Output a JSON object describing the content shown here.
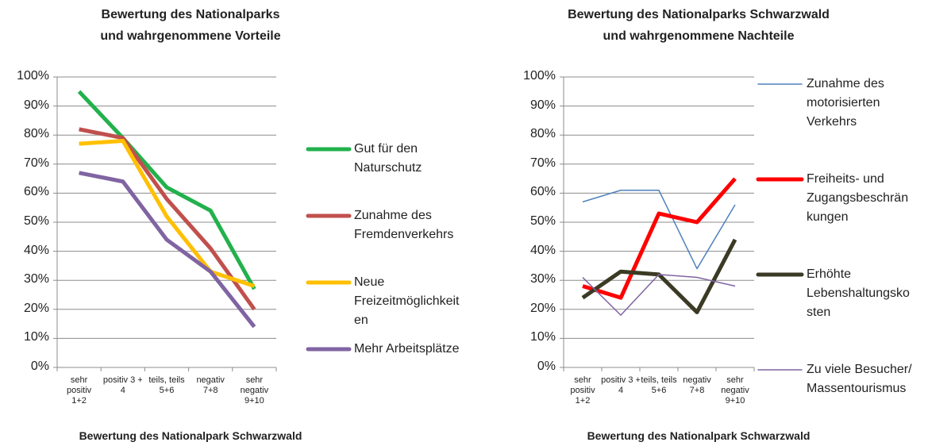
{
  "chart_data": [
    {
      "type": "line",
      "title": [
        "Bewertung des Nationalparks",
        "und wahrgenommene Vorteile"
      ],
      "x_label": "Bewertung des Nationalpark Schwarzwald",
      "categories": [
        "sehr positiv 1+2",
        "positiv 3 + 4",
        "teils, teils 5+6",
        "negativ 7+8",
        "sehr negativ 9+10"
      ],
      "series": [
        {
          "name": "Gut für den Naturschutz",
          "color": "#22b14c",
          "width": 5,
          "values": [
            95,
            79,
            62,
            54,
            27
          ]
        },
        {
          "name": "Zunahme des Fremdenverkehrs",
          "color": "#c0504d",
          "width": 5,
          "values": [
            82,
            79,
            58,
            41,
            20
          ]
        },
        {
          "name": "Neue Freizeitmöglichkeiten",
          "color": "#ffc000",
          "width": 5,
          "values": [
            77,
            78,
            52,
            33,
            28
          ]
        },
        {
          "name": "Mehr Arbeitsplätze",
          "color": "#8064a2",
          "width": 5,
          "values": [
            67,
            64,
            44,
            33,
            14
          ]
        }
      ],
      "ylim": [
        0,
        100
      ],
      "yticks": [
        {
          "value": 0,
          "label": "0%"
        },
        {
          "value": 10,
          "label": "10%"
        },
        {
          "value": 20,
          "label": "20%"
        },
        {
          "value": 30,
          "label": "30%"
        },
        {
          "value": 40,
          "label": "40%"
        },
        {
          "value": 50,
          "label": "50%"
        },
        {
          "value": 60,
          "label": "60%"
        },
        {
          "value": 70,
          "label": "70%"
        },
        {
          "value": 80,
          "label": "80%"
        },
        {
          "value": 90,
          "label": "90%"
        },
        {
          "value": 100,
          "label": "100%"
        }
      ],
      "grid": true,
      "legend": "right"
    },
    {
      "type": "line",
      "title": [
        "Bewertung des Nationalparks Schwarzwald",
        "und wahrgenommene Nachteile"
      ],
      "x_label": "Bewertung des Nationalpark Schwarzwald",
      "categories": [
        "sehr positiv 1+2",
        "positiv 3 + 4",
        "teils, teils 5+6",
        "negativ 7+8",
        "sehr negativ 9+10"
      ],
      "series": [
        {
          "name": "Zunahme des motorisierten Verkehrs",
          "color": "#4f81bd",
          "width": 1.5,
          "values": [
            57,
            61,
            61,
            34,
            56
          ]
        },
        {
          "name": "Freiheits- und Zugangsbeschränkungen",
          "color": "#ff0000",
          "width": 5,
          "values": [
            28,
            24,
            53,
            50,
            65
          ]
        },
        {
          "name": "Erhöhte Lebenshaltungskosten",
          "color": "#3b3a24",
          "width": 5,
          "values": [
            24,
            33,
            32,
            19,
            44
          ]
        },
        {
          "name": "Zu viele Besucher/ Massentourismus",
          "color": "#8064a2",
          "width": 1.5,
          "values": [
            31,
            18,
            32,
            31,
            28
          ]
        }
      ],
      "ylim": [
        0,
        100
      ],
      "yticks": [
        {
          "value": 0,
          "label": "0%"
        },
        {
          "value": 10,
          "label": "10%"
        },
        {
          "value": 20,
          "label": "20%"
        },
        {
          "value": 30,
          "label": "30%"
        },
        {
          "value": 40,
          "label": "40%"
        },
        {
          "value": 50,
          "label": "50%"
        },
        {
          "value": 60,
          "label": "60%"
        },
        {
          "value": 70,
          "label": "70%"
        },
        {
          "value": 80,
          "label": "80%"
        },
        {
          "value": 90,
          "label": "90%"
        },
        {
          "value": 100,
          "label": "100%"
        }
      ],
      "grid": true,
      "legend": "right"
    }
  ]
}
